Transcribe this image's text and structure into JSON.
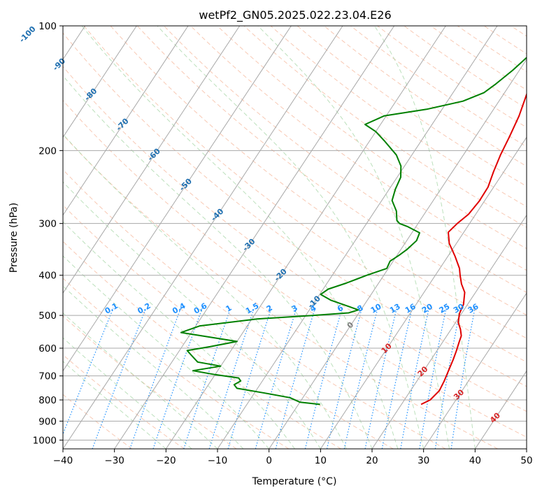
{
  "chart_data": {
    "type": "skew-t",
    "title": "wetPf2_GN05.2025.022.23.04.E26",
    "xlabel": "Temperature (°C)",
    "ylabel": "Pressure (hPa)",
    "xlim": [
      -40,
      50
    ],
    "ylim": [
      1050,
      100
    ],
    "y_scale": "log",
    "x_ticks": [
      -40,
      -30,
      -20,
      -10,
      0,
      10,
      20,
      30,
      40,
      50
    ],
    "y_ticks": [
      100,
      200,
      300,
      400,
      500,
      600,
      700,
      800,
      900,
      1000
    ],
    "grid": true,
    "colors": {
      "temperature": "#e00000",
      "dewpoint": "#008000",
      "dry_adiabat": "#f4a582",
      "moist_adiabat": "#a6d5a6",
      "mixing_ratio": "#1e90ff",
      "isotherm_grid": "#a8a8a8",
      "isotherm_labels_neg": "#1f6fb0",
      "isotherm_labels_pos": "#d62728",
      "zero_label": "#808080",
      "lcl_curve": "#d2b48c"
    },
    "series": [
      {
        "name": "",
        "role": "temperature",
        "points": [
          [
            23.8,
            820
          ],
          [
            25.0,
            800
          ],
          [
            25.6,
            760
          ],
          [
            25.3,
            720
          ],
          [
            24.8,
            680
          ],
          [
            24.3,
            640
          ],
          [
            23.8,
            610
          ],
          [
            23.2,
            580
          ],
          [
            22.8,
            560
          ],
          [
            21.8,
            540
          ],
          [
            20.5,
            520
          ],
          [
            19.6,
            495
          ],
          [
            19.2,
            470
          ],
          [
            17.9,
            440
          ],
          [
            16.2,
            420
          ],
          [
            14.8,
            400
          ],
          [
            13.8,
            385
          ],
          [
            11.4,
            360
          ],
          [
            8.6,
            335
          ],
          [
            7.0,
            315
          ],
          [
            7.6,
            300
          ],
          [
            8.6,
            285
          ],
          [
            9.0,
            265
          ],
          [
            8.9,
            245
          ],
          [
            8.0,
            225
          ],
          [
            7.2,
            205
          ],
          [
            6.6,
            185
          ],
          [
            5.8,
            165
          ],
          [
            4.4,
            145
          ],
          [
            3.3,
            130
          ],
          [
            3.1,
            118
          ],
          [
            3.4,
            108
          ],
          [
            3.6,
            100
          ]
        ]
      },
      {
        "name": "",
        "role": "dewpoint",
        "points": [
          [
            4.2,
            820
          ],
          [
            0.0,
            810
          ],
          [
            -2.5,
            790
          ],
          [
            -8.0,
            770
          ],
          [
            -14.0,
            750
          ],
          [
            -15.0,
            735
          ],
          [
            -14.2,
            720
          ],
          [
            -15.0,
            708
          ],
          [
            -20.0,
            695
          ],
          [
            -24.8,
            680
          ],
          [
            -20.0,
            663
          ],
          [
            -25.0,
            648
          ],
          [
            -27.0,
            625
          ],
          [
            -28.5,
            608
          ],
          [
            -24.6,
            595
          ],
          [
            -20.0,
            578
          ],
          [
            -32.0,
            550
          ],
          [
            -29.2,
            530
          ],
          [
            -19.0,
            510
          ],
          [
            -8.5,
            500
          ],
          [
            -2.0,
            493
          ],
          [
            -0.5,
            485
          ],
          [
            -3.0,
            475
          ],
          [
            -7.0,
            460
          ],
          [
            -9.8,
            445
          ],
          [
            -9.0,
            432
          ],
          [
            -6.3,
            418
          ],
          [
            -3.3,
            400
          ],
          [
            -0.3,
            385
          ],
          [
            -0.6,
            370
          ],
          [
            0.4,
            358
          ],
          [
            1.2,
            346
          ],
          [
            1.9,
            330
          ],
          [
            1.5,
            316
          ],
          [
            -1.7,
            305
          ],
          [
            -3.6,
            300
          ],
          [
            -4.5,
            295
          ],
          [
            -5.8,
            280
          ],
          [
            -8.0,
            264
          ],
          [
            -8.8,
            248
          ],
          [
            -9.3,
            232
          ],
          [
            -10.7,
            218
          ],
          [
            -13.0,
            205
          ],
          [
            -17.0,
            190
          ],
          [
            -20.0,
            180
          ],
          [
            -23.0,
            173
          ],
          [
            -20.4,
            165
          ],
          [
            -13.0,
            159
          ],
          [
            -7.0,
            152
          ],
          [
            -4.0,
            145
          ],
          [
            -2.8,
            138
          ],
          [
            -1.3,
            128
          ],
          [
            -0.3,
            120
          ],
          [
            1.0,
            110
          ],
          [
            2.4,
            103
          ],
          [
            2.8,
            100
          ]
        ]
      }
    ],
    "isotherm_labels": [
      "-100",
      "-90",
      "-80",
      "-70",
      "-60",
      "-50",
      "-40",
      "-30",
      "-20",
      "-10",
      "0",
      "10",
      "20",
      "30",
      "40"
    ],
    "mixing_ratio_labels": [
      "0.1",
      "0.2",
      "0.4",
      "0.6",
      "1",
      "1.5",
      "2",
      "3",
      "4",
      "6",
      "8",
      "10",
      "13",
      "16",
      "20",
      "25",
      "30",
      "36"
    ]
  }
}
